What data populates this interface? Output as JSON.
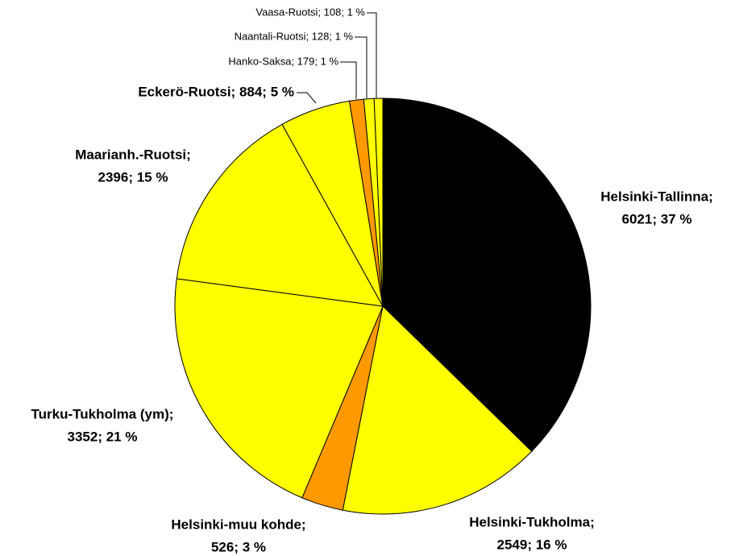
{
  "chart_data": {
    "type": "pie",
    "values": [
      6021,
      2549,
      526,
      3352,
      2396,
      884,
      179,
      128,
      108
    ],
    "value_labels": [
      [
        "Helsinki-Tallinna;",
        "6021; 37 %"
      ],
      [
        "Helsinki-Tukholma;",
        "2549; 16 %"
      ],
      [
        "Helsinki-muu kohde;",
        "526; 3 %"
      ],
      [
        "Turku-Tukholma (ym);",
        "3352; 21 %"
      ],
      [
        "Maarianh.-Ruotsi;",
        "2396; 15 %"
      ],
      [
        "Eckerö-Ruotsi; 884; 5 %"
      ],
      [
        "Hanko-Saksa; 179; 1 %"
      ],
      [
        "Naantali-Ruotsi; 128; 1 %"
      ],
      [
        "Vaasa-Ruotsi; 108; 1 %"
      ]
    ],
    "colors": [
      "#000000",
      "#ffff00",
      "#ff9900",
      "#ffff00",
      "#ffff00",
      "#ffff00",
      "#ff9900",
      "#ffff00",
      "#ffff00"
    ]
  }
}
